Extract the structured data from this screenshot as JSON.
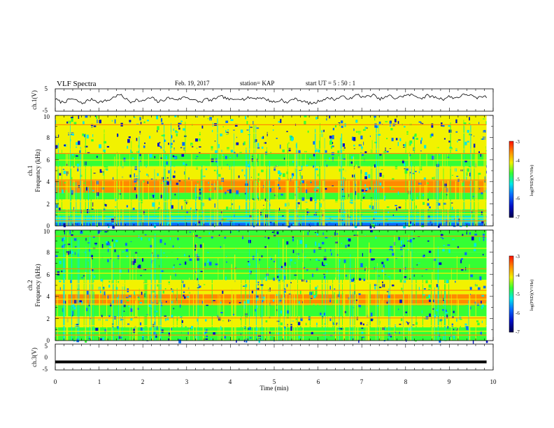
{
  "header": {
    "title": "VLF Spectra",
    "date": "Feb. 19, 2017",
    "station": "station= KAP",
    "start": "start  UT =   5  : 50 : 1"
  },
  "colorbar": {
    "label": "log(PSD)(V²/Hz)",
    "ticks": [
      "-3",
      "-4",
      "-5",
      "-6",
      "-7"
    ],
    "stops": [
      "#ff1000",
      "#ff8a00",
      "#f2f200",
      "#34ff34",
      "#00e8e8",
      "#0a6cff",
      "#0010c8",
      "#000050"
    ]
  },
  "chart_data": [
    {
      "type": "line",
      "panel": "ch1-waveform",
      "ylabel": "ch.1(V)",
      "ylim": [
        -5,
        5
      ],
      "yticks": [
        "5",
        "-5"
      ],
      "xlim": [
        0,
        10
      ],
      "series": [
        {
          "values": [
            0.5,
            -0.9,
            -0.6,
            0.6,
            -0.3,
            -1.6,
            -0.2,
            0.3,
            -0.9,
            -0.5,
            0.0,
            1.5,
            2.4,
            0.7,
            -1.0,
            0.2,
            -0.8,
            0.5,
            1.0,
            -0.8,
            -0.1,
            1.0,
            0.4,
            0.3,
            1.5,
            0.6,
            -0.3,
            -1.0,
            0.6,
            -0.4,
            1.2,
            1.5,
            0.4,
            0.0,
            0.9,
            0.3,
            1.1,
            0.7,
            1.1,
            0.4,
            -0.5,
            -1.0,
            0.3,
            -1.5,
            0.6,
            0.2,
            -0.6,
            -1.4,
            -1.5,
            -0.3,
            0.4,
            0.9,
            0.2,
            1.6,
            1.0,
            0.5,
            2.8,
            1.2,
            1.6,
            2.3,
            0.4,
            0.9,
            2.0,
            0.7,
            1.4,
            2.1,
            2.3,
            1.7,
            0.7,
            2.0,
            1.5,
            0.9,
            0.4,
            1.6,
            0.9,
            1.5,
            2.6,
            2.2,
            0.7,
            1.6,
            1.3
          ]
        }
      ]
    },
    {
      "type": "heatmap",
      "panel": "ch1-spectrogram",
      "ylabel": "ch.1",
      "ylabel2": "Frequency (kHz)",
      "ylim": [
        0,
        10
      ],
      "yticks": [
        "10",
        "8",
        "6",
        "4",
        "2",
        "0"
      ],
      "xlim": [
        0,
        10
      ],
      "bands": [
        {
          "from": 0.0,
          "to": 0.3,
          "level": 2
        },
        {
          "from": 0.3,
          "to": 0.9,
          "level": 3
        },
        {
          "from": 0.9,
          "to": 1.5,
          "level": 4
        },
        {
          "from": 1.5,
          "to": 2.4,
          "level": 5
        },
        {
          "from": 2.4,
          "to": 3.0,
          "level": 4
        },
        {
          "from": 3.0,
          "to": 4.1,
          "level": 6
        },
        {
          "from": 4.1,
          "to": 5.4,
          "level": 5
        },
        {
          "from": 5.4,
          "to": 6.6,
          "level": 4
        },
        {
          "from": 6.6,
          "to": 10.0,
          "level": 5
        }
      ],
      "lines_khz": [
        0.45,
        0.7,
        1.1,
        1.35,
        2.2,
        3.55,
        4.15,
        5.25,
        5.95,
        6.55,
        6.95,
        8.4,
        9.15
      ]
    },
    {
      "type": "heatmap",
      "panel": "ch2-spectrogram",
      "ylabel": "ch.2",
      "ylabel2": "Frequency (kHz)",
      "ylim": [
        0,
        10
      ],
      "yticks": [
        "10",
        "8",
        "6",
        "4",
        "2",
        "0"
      ],
      "xlim": [
        0,
        10
      ],
      "bands": [
        {
          "from": 0.0,
          "to": 0.4,
          "level": 4
        },
        {
          "from": 0.4,
          "to": 1.2,
          "level": 4
        },
        {
          "from": 1.2,
          "to": 2.2,
          "level": 5
        },
        {
          "from": 2.2,
          "to": 3.2,
          "level": 4
        },
        {
          "from": 3.2,
          "to": 4.2,
          "level": 6
        },
        {
          "from": 4.2,
          "to": 5.5,
          "level": 5
        },
        {
          "from": 5.5,
          "to": 8.0,
          "level": 4
        },
        {
          "from": 8.0,
          "to": 10.0,
          "level": 4
        }
      ],
      "lines_khz": [
        0.5,
        0.85,
        1.35,
        2.05,
        3.3,
        3.75,
        4.55,
        5.15,
        6.1,
        6.5,
        7.5,
        8.35,
        9.45
      ]
    },
    {
      "type": "line",
      "panel": "ch3-waveform",
      "ylabel": "ch.3(V)",
      "ylim": [
        -5,
        5
      ],
      "yticks": [
        "5",
        "0",
        "-5"
      ],
      "xlim": [
        0,
        10
      ],
      "series": [
        {
          "values": [
            -1.9,
            -1.9
          ]
        }
      ]
    }
  ],
  "xaxis": {
    "label": "Time  (min)",
    "ticks": [
      "0",
      "1",
      "2",
      "3",
      "4",
      "5",
      "6",
      "7",
      "8",
      "9",
      "10"
    ]
  }
}
